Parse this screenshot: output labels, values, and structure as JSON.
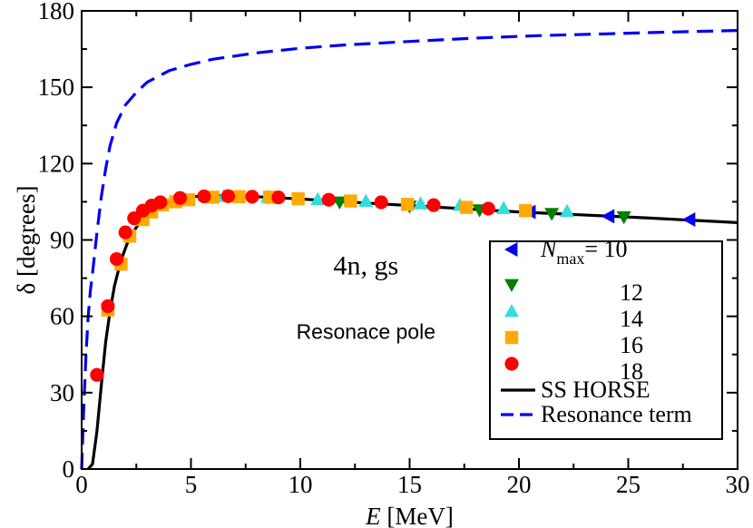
{
  "chart_data": {
    "type": "scatter",
    "xlabel": "E [MeV]",
    "xlabel_italic": "E",
    "xlabel_unit": "[MeV]",
    "ylabel": "δ [degrees]",
    "xlim": [
      0,
      30
    ],
    "ylim": [
      0,
      180
    ],
    "xticks": [
      0,
      5,
      10,
      15,
      20,
      25,
      30
    ],
    "yticks": [
      0,
      30,
      60,
      90,
      120,
      150,
      180
    ],
    "xtick_labels": [
      "0",
      "5",
      "10",
      "15",
      "20",
      "25",
      "30"
    ],
    "ytick_labels": [
      "0",
      "30",
      "60",
      "90",
      "120",
      "150",
      "180"
    ],
    "grid": false,
    "legend_position": "bottom-right",
    "annotations": [
      {
        "text": "4n, gs",
        "x": 13.0,
        "y": 80,
        "style": "big"
      },
      {
        "text": "Resonace pole",
        "x": 13.0,
        "y": 54,
        "style": "small"
      }
    ],
    "series": [
      {
        "name": "Nmax= 10",
        "legend_main": "N",
        "legend_sub": "max",
        "legend_suffix": "= 10",
        "marker": "triangle-left",
        "color": "#0000ee",
        "points": [
          [
            20.5,
            101
          ],
          [
            24.1,
            99.3
          ],
          [
            27.8,
            98
          ]
        ]
      },
      {
        "name": "12",
        "marker": "triangle-down",
        "color": "#008000",
        "points": [
          [
            11.8,
            104.8
          ],
          [
            15.0,
            103.2
          ],
          [
            18.2,
            101.7
          ],
          [
            21.5,
            100.3
          ],
          [
            24.8,
            99.0
          ]
        ]
      },
      {
        "name": "14",
        "marker": "triangle-up",
        "color": "#33dddd",
        "points": [
          [
            6.5,
            107.2
          ],
          [
            8.5,
            107
          ],
          [
            10.8,
            106
          ],
          [
            13.0,
            105.3
          ],
          [
            15.5,
            104.3
          ],
          [
            17.3,
            103.7
          ],
          [
            19.3,
            102.5
          ],
          [
            22.2,
            101.3
          ]
        ]
      },
      {
        "name": "16",
        "marker": "square",
        "color": "#ffaa00",
        "points": [
          [
            1.2,
            62.5
          ],
          [
            1.8,
            80.5
          ],
          [
            2.2,
            91.5
          ],
          [
            2.8,
            98
          ],
          [
            3.2,
            101
          ],
          [
            3.7,
            103.8
          ],
          [
            4.3,
            105
          ],
          [
            4.9,
            105.8
          ],
          [
            6.0,
            106.8
          ],
          [
            7.2,
            107
          ],
          [
            8.6,
            106.8
          ],
          [
            9.9,
            106.2
          ],
          [
            12.3,
            105.3
          ],
          [
            14.9,
            104
          ],
          [
            17.6,
            102.8
          ],
          [
            20.3,
            101.5
          ]
        ]
      },
      {
        "name": "18",
        "marker": "circle",
        "color": "#ff0000",
        "points": [
          [
            0.7,
            37
          ],
          [
            1.2,
            64
          ],
          [
            1.6,
            82.5
          ],
          [
            2.0,
            93
          ],
          [
            2.4,
            98.5
          ],
          [
            2.8,
            101.5
          ],
          [
            3.2,
            103.5
          ],
          [
            3.6,
            104.8
          ],
          [
            4.5,
            106.5
          ],
          [
            5.6,
            107.1
          ],
          [
            6.7,
            107.2
          ],
          [
            7.8,
            107
          ],
          [
            9.0,
            106.7
          ],
          [
            11.3,
            105.8
          ],
          [
            13.7,
            104.8
          ],
          [
            16.1,
            103.7
          ],
          [
            18.6,
            102.3
          ]
        ]
      },
      {
        "name": "SS HORSE",
        "type": "line",
        "color": "#000000",
        "dash": "solid",
        "points": [
          [
            0.3,
            0
          ],
          [
            0.5,
            2
          ],
          [
            0.7,
            15
          ],
          [
            0.9,
            33
          ],
          [
            1.1,
            50
          ],
          [
            1.3,
            62
          ],
          [
            1.5,
            72
          ],
          [
            1.8,
            82
          ],
          [
            2.1,
            89
          ],
          [
            2.5,
            95
          ],
          [
            3.0,
            100
          ],
          [
            3.5,
            103
          ],
          [
            4.0,
            105
          ],
          [
            4.5,
            106.3
          ],
          [
            5.0,
            107
          ],
          [
            6.0,
            107.4
          ],
          [
            7.0,
            107.3
          ],
          [
            8.0,
            107
          ],
          [
            10.0,
            106.1
          ],
          [
            12.0,
            105
          ],
          [
            14.0,
            104
          ],
          [
            16.0,
            103
          ],
          [
            18.0,
            102
          ],
          [
            20.0,
            101
          ],
          [
            22.0,
            100.2
          ],
          [
            24.0,
            99.4
          ],
          [
            26.0,
            98.6
          ],
          [
            28.0,
            97.7
          ],
          [
            30.0,
            96.8
          ]
        ]
      },
      {
        "name": "Resonance term",
        "type": "line",
        "color": "#0000ee",
        "dash": "dashed",
        "points": [
          [
            0.0,
            0
          ],
          [
            0.1,
            25
          ],
          [
            0.2,
            45
          ],
          [
            0.3,
            60
          ],
          [
            0.4,
            70
          ],
          [
            0.5,
            77
          ],
          [
            0.7,
            93
          ],
          [
            0.9,
            107
          ],
          [
            1.1,
            118
          ],
          [
            1.3,
            127
          ],
          [
            1.6,
            136
          ],
          [
            2.0,
            143
          ],
          [
            2.5,
            148
          ],
          [
            3.0,
            152
          ],
          [
            4.0,
            156.5
          ],
          [
            5.0,
            159
          ],
          [
            6.0,
            161
          ],
          [
            8.0,
            163.5
          ],
          [
            10.0,
            165.3
          ],
          [
            12.0,
            166.6
          ],
          [
            15.0,
            168
          ],
          [
            18.0,
            169.3
          ],
          [
            21.0,
            170.3
          ],
          [
            24.0,
            171
          ],
          [
            27.0,
            171.7
          ],
          [
            30.0,
            172.3
          ]
        ]
      }
    ]
  }
}
